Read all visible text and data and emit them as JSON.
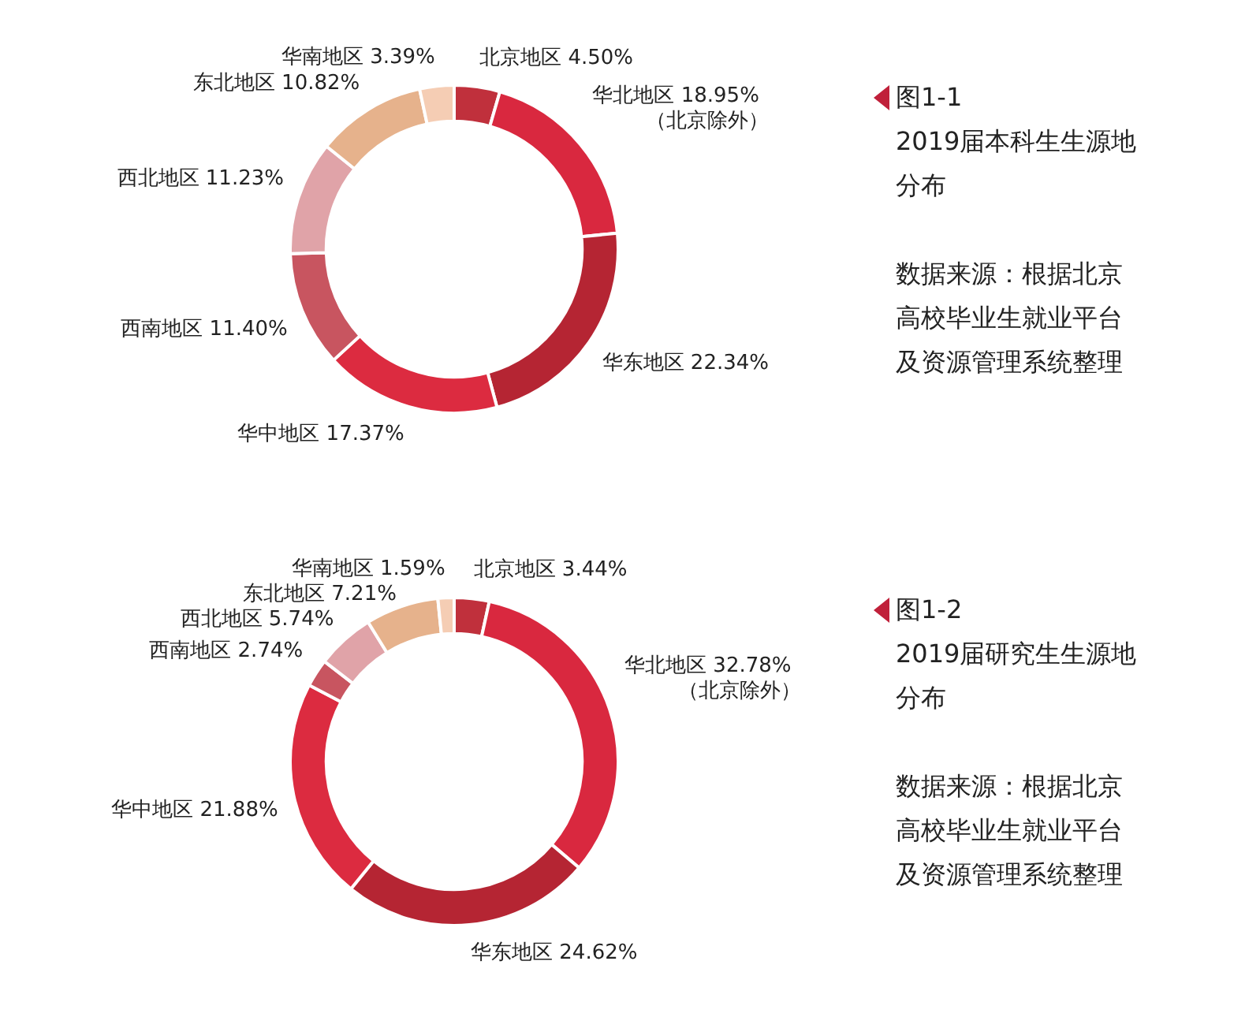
{
  "chart_data": [
    {
      "type": "donut",
      "title": "图1-1",
      "subtitle": "2019届本科生生源地分布",
      "annotations": [
        "数据来源：根据北京高校毕业生就业平台及资源管理系统整理",
        {
          "text": "（北京除外）",
          "x": "华北地区"
        }
      ],
      "categories": [
        "北京地区",
        "华北地区",
        "华东地区",
        "华中地区",
        "西南地区",
        "西北地区",
        "东北地区",
        "华南地区"
      ],
      "values": [
        4.5,
        18.95,
        22.34,
        17.37,
        11.4,
        11.23,
        10.82,
        3.39
      ],
      "value_labels": [
        "4.50%",
        "18.95%",
        "22.34%",
        "17.37%",
        "11.40%",
        "11.23%",
        "10.82%",
        "3.39%"
      ],
      "colors": [
        "#c0303c",
        "#d9283f",
        "#b52533",
        "#dc2b40",
        "#c85560",
        "#e0a3a8",
        "#e6b28c",
        "#f5cdb4"
      ]
    },
    {
      "type": "donut",
      "title": "图1-2",
      "subtitle": "2019届研究生生源地分布",
      "annotations": [
        "数据来源：根据北京高校毕业生就业平台及资源管理系统整理",
        {
          "text": "（北京除外）",
          "x": "华北地区"
        }
      ],
      "categories": [
        "北京地区",
        "华北地区",
        "华东地区",
        "华中地区",
        "西南地区",
        "西北地区",
        "东北地区",
        "华南地区"
      ],
      "values": [
        3.44,
        32.78,
        24.62,
        21.88,
        2.74,
        5.74,
        7.21,
        1.59
      ],
      "value_labels": [
        "3.44%",
        "32.78%",
        "24.62%",
        "21.88%",
        "2.74%",
        "5.74%",
        "7.21%",
        "1.59%"
      ],
      "colors": [
        "#c0303c",
        "#d9283f",
        "#b52533",
        "#dc2b40",
        "#c85560",
        "#e0a3a8",
        "#e6b28c",
        "#f5cdb4"
      ]
    }
  ]
}
